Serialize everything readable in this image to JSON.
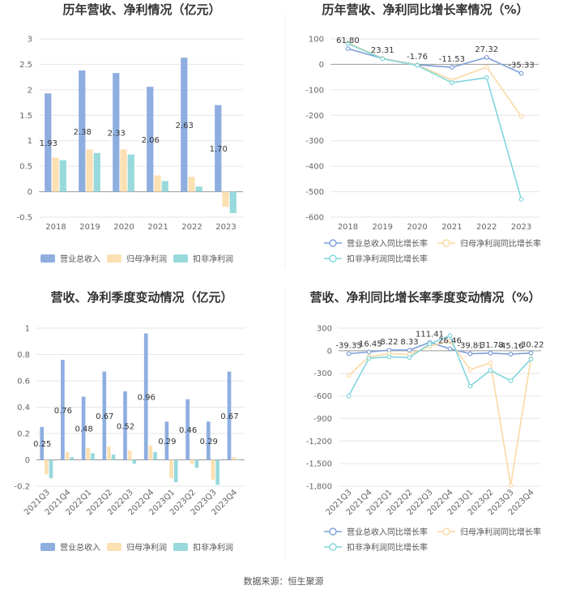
{
  "colors": {
    "revenue": "#8eaee0",
    "parent_np": "#fde0b2",
    "deducted_np": "#98d9dc",
    "revenue_line": "#7d9fd8",
    "parent_line": "#fbd9a3",
    "deducted_line": "#7fd6dd",
    "grid": "#e6e6e6",
    "axis": "#999999"
  },
  "source": "数据来源：恒生聚源",
  "chart_data": [
    {
      "type": "bar",
      "title": "历年营收、净利情况（亿元）",
      "categories": [
        "2018",
        "2019",
        "2020",
        "2021",
        "2022",
        "2023"
      ],
      "ylim": [
        -0.5,
        3
      ],
      "yticks": [
        -0.5,
        0,
        0.5,
        1,
        1.5,
        2,
        2.5,
        3
      ],
      "ytick_labels": [
        "-0.5",
        "0",
        "0.5",
        "1",
        "1.5",
        "2",
        "2.5",
        "3"
      ],
      "series": [
        {
          "name": "营业总收入",
          "values": [
            1.93,
            2.38,
            2.33,
            2.06,
            2.63,
            1.7
          ],
          "labels": [
            "1.93",
            "2.38",
            "2.33",
            "2.06",
            "2.63",
            "1.70"
          ]
        },
        {
          "name": "归母净利润",
          "values": [
            0.67,
            0.83,
            0.83,
            0.32,
            0.29,
            -0.3
          ]
        },
        {
          "name": "扣非净利润",
          "values": [
            0.62,
            0.76,
            0.73,
            0.21,
            0.1,
            -0.42
          ]
        }
      ],
      "legend_position": "bottom"
    },
    {
      "type": "line",
      "title": "历年营收、净利同比增长率情况（%）",
      "categories": [
        "2018",
        "2019",
        "2020",
        "2021",
        "2022",
        "2023"
      ],
      "ylim": [
        -600,
        100
      ],
      "yticks": [
        -600,
        -500,
        -400,
        -300,
        -200,
        -100,
        0,
        100
      ],
      "ytick_labels": [
        "-600",
        "-500",
        "-400",
        "-300",
        "-200",
        "-100",
        "0",
        "100"
      ],
      "series": [
        {
          "name": "营业总收入同比增长率",
          "values": [
            61.8,
            23.31,
            -1.76,
            -11.53,
            27.32,
            -35.33
          ],
          "labels": [
            "61.80",
            "23.31",
            "-1.76",
            "-11.53",
            "27.32",
            "-35.33"
          ]
        },
        {
          "name": "归母净利润同比增长率",
          "values": [
            85,
            24,
            -2,
            -62,
            -10,
            -205
          ]
        },
        {
          "name": "扣非净利润同比增长率",
          "values": [
            82,
            22,
            -4,
            -72,
            -52,
            -530
          ]
        }
      ],
      "legend_position": "bottom"
    },
    {
      "type": "bar",
      "title": "营收、净利季度变动情况（亿元）",
      "categories": [
        "2021Q3",
        "2021Q4",
        "2022Q1",
        "2022Q2",
        "2022Q3",
        "2022Q4",
        "2023Q1",
        "2023Q2",
        "2023Q3",
        "2023Q4"
      ],
      "ylim": [
        -0.2,
        1
      ],
      "yticks": [
        -0.2,
        0,
        0.2,
        0.4,
        0.6,
        0.8,
        1
      ],
      "ytick_labels": [
        "-0.2",
        "0",
        "0.2",
        "0.4",
        "0.6",
        "0.8",
        "1"
      ],
      "series": [
        {
          "name": "营业总收入",
          "values": [
            0.25,
            0.76,
            0.48,
            0.67,
            0.52,
            0.96,
            0.29,
            0.46,
            0.29,
            0.67
          ],
          "labels": [
            "0.25",
            "0.76",
            "0.48",
            "0.67",
            "0.52",
            "0.96",
            "0.29",
            "0.46",
            "0.29",
            "0.67"
          ]
        },
        {
          "name": "归母净利润",
          "values": [
            -0.11,
            0.06,
            0.09,
            0.1,
            0.07,
            0.11,
            -0.14,
            -0.03,
            -0.15,
            0.02
          ]
        },
        {
          "name": "扣非净利润",
          "values": [
            -0.14,
            0.02,
            0.05,
            0.04,
            -0.03,
            0.06,
            -0.17,
            -0.06,
            -0.19,
            0.0
          ]
        }
      ],
      "legend_position": "bottom"
    },
    {
      "type": "line",
      "title": "营收、净利同比增长率季度变动情况（%）",
      "categories": [
        "2021Q3",
        "2021Q4",
        "2022Q1",
        "2022Q2",
        "2022Q3",
        "2022Q4",
        "2023Q1",
        "2023Q2",
        "2023Q3",
        "2023Q4"
      ],
      "ylim": [
        -1800,
        300
      ],
      "yticks": [
        -1800,
        -1500,
        -1200,
        -900,
        -600,
        -300,
        0,
        300
      ],
      "ytick_labels": [
        "-1,800",
        "-1,500",
        "-1,200",
        "-900",
        "-600",
        "-300",
        "0",
        "300"
      ],
      "series": [
        {
          "name": "营业总收入同比增长率",
          "values": [
            -39.33,
            -16.45,
            8.22,
            8.33,
            111.41,
            26.46,
            -39.81,
            -31.78,
            -45.16,
            -30.22
          ],
          "labels": [
            "-39.33",
            "-16.45",
            "8.22",
            "8.33",
            "111.41",
            "26.46",
            "-39.81",
            "-31.78",
            "-45.16",
            "-30.22"
          ]
        },
        {
          "name": "归母净利润同比增长率",
          "values": [
            -330,
            -80,
            -40,
            -50,
            60,
            130,
            -250,
            -160,
            -1790,
            -100
          ]
        },
        {
          "name": "扣非净利润同比增长率",
          "values": [
            -600,
            -100,
            -80,
            -90,
            90,
            200,
            -470,
            -260,
            -400,
            -110
          ]
        }
      ],
      "legend_position": "bottom"
    }
  ]
}
